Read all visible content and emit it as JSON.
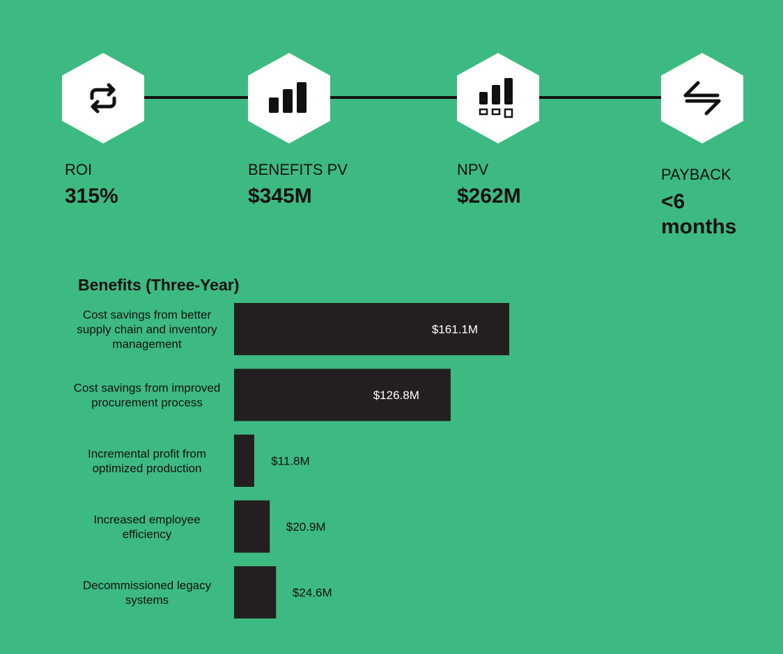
{
  "metrics": [
    {
      "label": "ROI",
      "value": "315%",
      "icon": "repeat-icon"
    },
    {
      "label": "BENEFITS PV",
      "value": "$345M",
      "icon": "bar-chart-icon"
    },
    {
      "label": "NPV",
      "value": "$262M",
      "icon": "bar-chart-boxes-icon"
    },
    {
      "label": "PAYBACK",
      "value_line1": "<6",
      "value_line2": "months",
      "icon": "exchange-arrows-icon"
    }
  ],
  "colors": {
    "background": "#3dba81",
    "bar": "#231f20",
    "hexagon": "#ffffff",
    "text": "#111111"
  },
  "chart_data": {
    "type": "bar",
    "orientation": "horizontal",
    "title": "Benefits (Three-Year)",
    "categories": [
      [
        "Cost savings from better",
        "supply chain and inventory",
        "management"
      ],
      [
        "Cost savings from improved",
        "procurement process"
      ],
      [
        "Incremental profit from",
        "optimized production"
      ],
      [
        "Increased employee",
        "efficiency"
      ],
      [
        "Decommissioned legacy",
        "systems"
      ]
    ],
    "values": [
      161.1,
      126.8,
      11.8,
      20.9,
      24.6
    ],
    "data_labels": [
      "$161.1M",
      "$126.8M",
      "$11.8M",
      "$20.9M",
      "$24.6M"
    ],
    "unit": "$M",
    "xlim": [
      0,
      161.1
    ],
    "grid": false,
    "legend": "none"
  }
}
